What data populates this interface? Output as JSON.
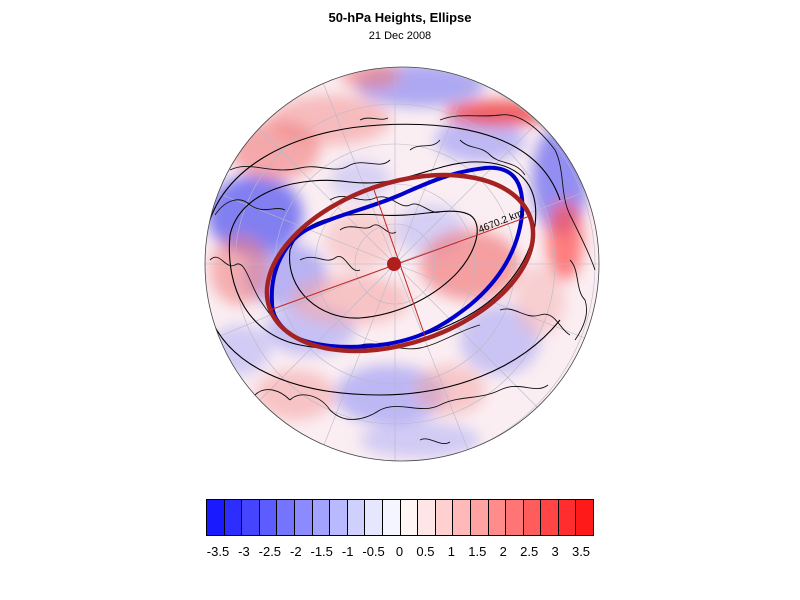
{
  "title": "50-hPa Heights, Ellipse",
  "date": "21 Dec 2008",
  "distance_label": "4670.2 km",
  "colors": {
    "observed_contour": "#0000cc",
    "fitted_ellipse": "#a52222",
    "centroid": "#b01e1e",
    "positive": "#ff0000",
    "negative": "#0000ff",
    "neutral": "#ffffff"
  },
  "colorbar": {
    "labels": [
      "-3.5",
      "-3",
      "-2.5",
      "-2",
      "-1.5",
      "-1",
      "-0.5",
      "0",
      "0.5",
      "1",
      "1.5",
      "2",
      "2.5",
      "3",
      "3.5"
    ],
    "segment_colors": [
      "#1a1aff",
      "#2d2dff",
      "#4545ff",
      "#5c5cff",
      "#7474ff",
      "#8b8bff",
      "#a2a2ff",
      "#b9b9ff",
      "#d0d0ff",
      "#e6e6ff",
      "#f5f5ff",
      "#fff5f5",
      "#ffe6e6",
      "#ffd0d0",
      "#ffb9b9",
      "#ffa2a2",
      "#ff8b8b",
      "#ff7474",
      "#ff5c5c",
      "#ff4545",
      "#ff2d2d",
      "#ff1a1a"
    ]
  }
}
